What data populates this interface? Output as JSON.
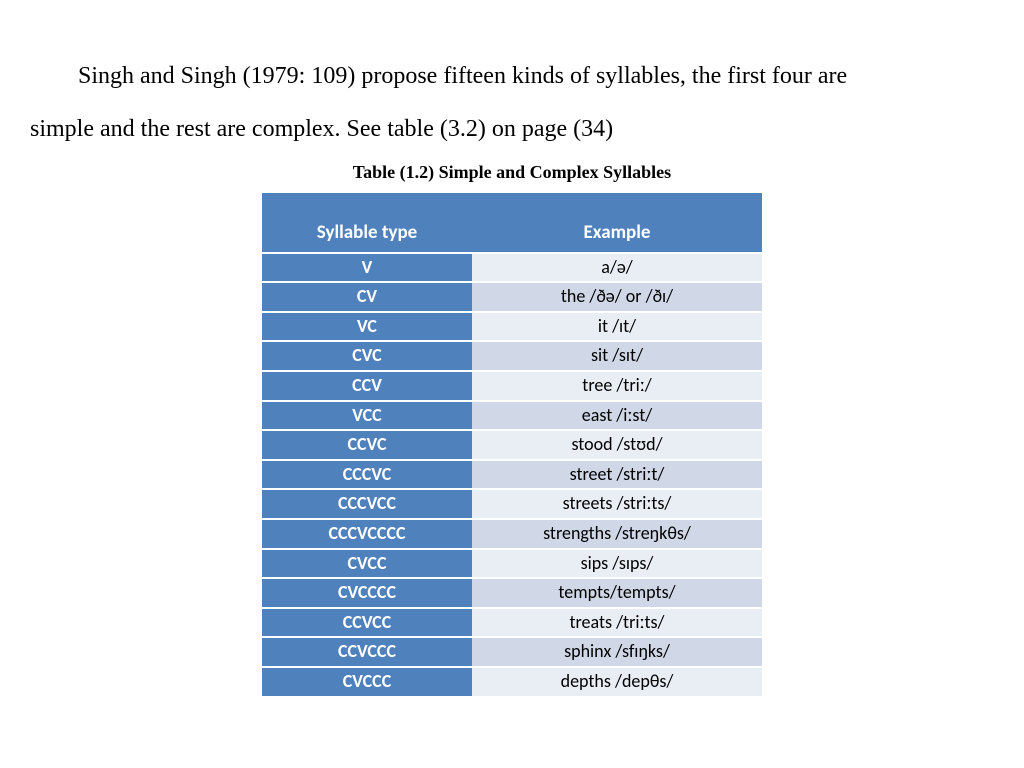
{
  "intro_line1": "Singh and Singh (1979: 109) propose fifteen kinds of syllables, the first four are",
  "intro_line2": "simple and the rest are complex. See table (3.2) on page (34)",
  "caption": "Table (1.2) Simple and Complex Syllables",
  "headers": {
    "col1": "Syllable type",
    "col2": "Example"
  },
  "colors": {
    "header_bg": "#4f81bd",
    "header_fg": "#ffffff",
    "row_odd_bg": "#e9edf4",
    "row_even_bg": "#d0d8e8",
    "text": "#000000"
  },
  "rows": [
    {
      "type": "V",
      "example": "a/ə/"
    },
    {
      "type": "CV",
      "example": "the /ðə/ or /ðɪ/"
    },
    {
      "type": "VC",
      "example": "it /ɪt/"
    },
    {
      "type": "CVC",
      "example": "sit /sɪt/"
    },
    {
      "type": "CCV",
      "example": "tree /triː/"
    },
    {
      "type": "VCC",
      "example": "east /iːst/"
    },
    {
      "type": "CCVC",
      "example": "stood /stʊd/"
    },
    {
      "type": "CCCVC",
      "example": "street /striːt/"
    },
    {
      "type": "CCCVCC",
      "example": "streets /striːts/"
    },
    {
      "type": "CCCVCCCC",
      "example": "strengths /streŋkθs/"
    },
    {
      "type": "CVCC",
      "example": "sips /sɪps/"
    },
    {
      "type": "CVCCCC",
      "example": "tempts/tempts/"
    },
    {
      "type": "CCVCC",
      "example": "treats /triːts/"
    },
    {
      "type": "CCVCCC",
      "example": "sphinx /sfɪŋks/"
    },
    {
      "type": "CVCCC",
      "example": "depths /depθs/"
    }
  ]
}
